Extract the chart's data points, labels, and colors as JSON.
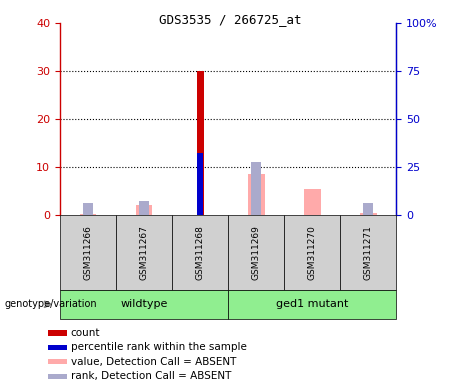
{
  "title": "GDS3535 / 266725_at",
  "samples": [
    "GSM311266",
    "GSM311267",
    "GSM311268",
    "GSM311269",
    "GSM311270",
    "GSM311271"
  ],
  "count_values": [
    0,
    0,
    30,
    0,
    0,
    0
  ],
  "percentile_values": [
    0,
    0,
    13,
    0,
    0,
    0
  ],
  "absent_value_values": [
    0.3,
    2.0,
    0,
    8.5,
    5.5,
    0.5
  ],
  "absent_rank_values": [
    2.5,
    3.0,
    0,
    11,
    0,
    2.5
  ],
  "left_ylim": [
    0,
    40
  ],
  "right_ylim": [
    0,
    100
  ],
  "left_yticks": [
    0,
    10,
    20,
    30,
    40
  ],
  "right_yticks": [
    0,
    25,
    50,
    75,
    100
  ],
  "left_yticklabels": [
    "0",
    "10",
    "20",
    "30",
    "40"
  ],
  "right_yticklabels": [
    "0",
    "25",
    "50",
    "75",
    "100%"
  ],
  "color_count": "#cc0000",
  "color_percentile": "#0000cc",
  "color_absent_value": "#ffaaaa",
  "color_absent_rank": "#aaaacc",
  "legend_items": [
    {
      "color": "#cc0000",
      "label": "count"
    },
    {
      "color": "#0000cc",
      "label": "percentile rank within the sample"
    },
    {
      "color": "#ffaaaa",
      "label": "value, Detection Call = ABSENT"
    },
    {
      "color": "#aaaacc",
      "label": "rank, Detection Call = ABSENT"
    }
  ],
  "group_label_text": "genotype/variation",
  "sample_box_color": "#d0d0d0",
  "wildtype_color": "#90EE90",
  "mutant_color": "#90EE90",
  "group_configs": [
    {
      "xstart": 0,
      "xend": 2,
      "label": "wildtype"
    },
    {
      "xstart": 3,
      "xend": 5,
      "label": "ged1 mutant"
    }
  ]
}
